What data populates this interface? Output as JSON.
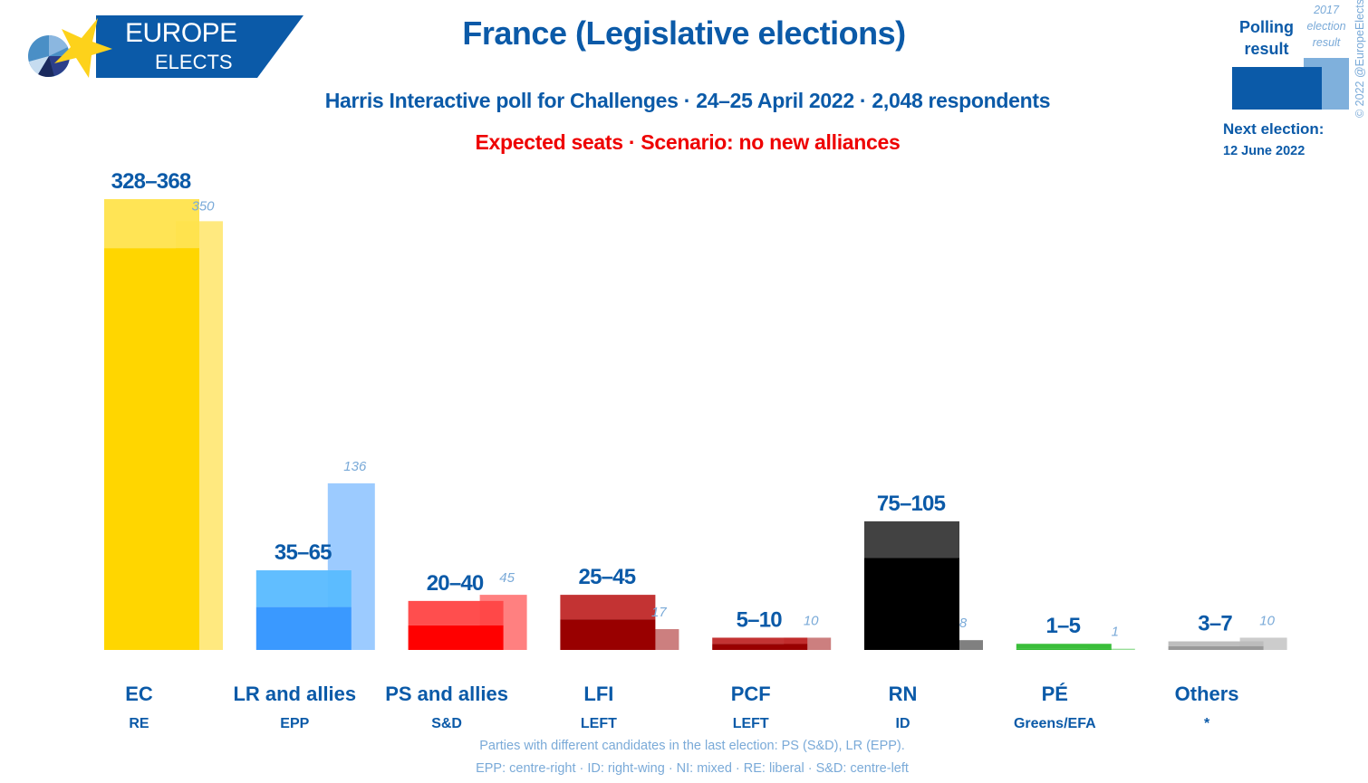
{
  "header": {
    "logo": {
      "line1": "EUROPE",
      "line2": "ELECTS",
      "star_icon": "eu-star-icon",
      "pie_icon": "pie-chart-icon"
    },
    "title": "France (Legislative elections)",
    "subtitle": "Harris Interactive poll for Challenges · 24–25 April 2022 · 2,048 respondents",
    "scenario": "Expected seats · Scenario: no new alliances"
  },
  "legend": {
    "polling_label_line1": "Polling",
    "polling_label_line2": "result",
    "ghost_label_line1": "2017",
    "ghost_label_line2": "election",
    "ghost_label_line3": "result",
    "polling_color": "#0b5aa8",
    "ghost_color": "#7fb0dc",
    "next_election_label": "Next election:",
    "next_election_date": "12 June 2022",
    "copyright": "© 2022 @EuropeElects"
  },
  "footer": {
    "line1": "Parties with different candidates in the last election: PS (S&D), LR (EPP).",
    "line2": "EPP: centre-right · ID: right-wing · NI: mixed · RE: liberal · S&D: centre-left"
  },
  "chart_data": {
    "type": "bar",
    "title": "France (Legislative elections)",
    "subtitle": "Harris Interactive poll for Challenges · 24–25 April 2022 · 2,048 respondents",
    "note": "Expected seats · Scenario: no new alliances",
    "xlabel": "",
    "ylabel": "Seats",
    "ylim": [
      0,
      368
    ],
    "grid": false,
    "legend_position": "top-right",
    "categories": [
      "EC",
      "LR and allies",
      "PS and allies",
      "LFI",
      "PCF",
      "RN",
      "PÉ",
      "Others"
    ],
    "groups": [
      "RE",
      "EPP",
      "S&D",
      "LEFT",
      "LEFT",
      "ID",
      "Greens/EFA",
      "*"
    ],
    "series": [
      {
        "name": "Polling result (low)",
        "values": [
          328,
          35,
          20,
          25,
          5,
          75,
          1,
          3
        ]
      },
      {
        "name": "Polling result (high)",
        "values": [
          368,
          65,
          40,
          45,
          10,
          105,
          5,
          7
        ]
      },
      {
        "name": "2017 election result",
        "values": [
          350,
          136,
          45,
          17,
          10,
          8,
          1,
          10
        ]
      }
    ],
    "range_labels": [
      "328–368",
      "35–65",
      "20–40",
      "25–45",
      "5–10",
      "75–105",
      "1–5",
      "3–7"
    ],
    "previous_labels": [
      "350",
      "136",
      "45",
      "17",
      "10",
      "8",
      "1",
      "10"
    ],
    "colors": {
      "low": [
        "#ffd600",
        "#3a99ff",
        "#ff0000",
        "#990000",
        "#990000",
        "#000000",
        "#2fbb2f",
        "#999999"
      ],
      "high": [
        "#ffe34c",
        "#59bbff",
        "#ff4545",
        "#c02828",
        "#c02828",
        "#383838",
        "#2fbb2f",
        "#bbbbbb"
      ],
      "ghost": [
        "#ffe97f",
        "#9ccbff",
        "#ff8080",
        "#cc7f7f",
        "#cc7f7f",
        "#808080",
        "#97dd97",
        "#cccccc"
      ]
    }
  }
}
